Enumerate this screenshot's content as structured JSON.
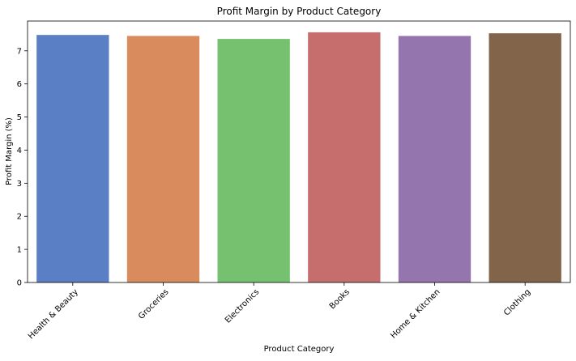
{
  "chart_data": {
    "type": "bar",
    "title": "Profit Margin by Product Category",
    "xlabel": "Product Category",
    "ylabel": "Profit Margin (%)",
    "categories": [
      "Health & Beauty",
      "Groceries",
      "Electronics",
      "Books",
      "Home & Kitchen",
      "Clothing"
    ],
    "values": [
      7.48,
      7.45,
      7.36,
      7.56,
      7.45,
      7.53
    ],
    "colors": [
      "#5b7fc4",
      "#d98b5e",
      "#76c170",
      "#c66d6d",
      "#9475ae",
      "#81644a"
    ],
    "yticks": [
      0,
      1,
      2,
      3,
      4,
      5,
      6,
      7
    ],
    "ylim": [
      0,
      7.9
    ],
    "grid": false,
    "legend": "none"
  }
}
